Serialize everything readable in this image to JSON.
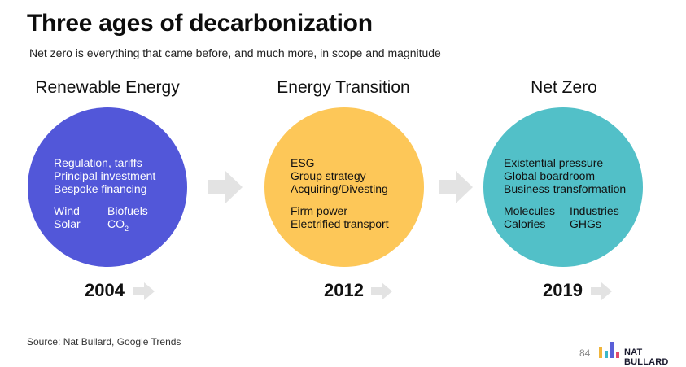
{
  "title": "Three ages of decarbonization",
  "subtitle": "Net zero is everything that came before, and much more, in scope and magnitude",
  "colors": {
    "renewable": "#5257d9",
    "transition": "#fdc758",
    "netzero": "#52c0c8",
    "arrow": "#e3e3e3",
    "logo_bars": [
      "#f0b53b",
      "#3bb7c9",
      "#5a5fd8",
      "#e24b6b"
    ]
  },
  "stages": [
    {
      "heading": "Renewable Energy",
      "lines": [
        "Regulation, tariffs",
        "Principal investment",
        "Bespoke financing"
      ],
      "grid": [
        [
          "Wind",
          "Biofuels"
        ],
        [
          "Solar",
          "CO",
          "2"
        ]
      ],
      "year": "2004"
    },
    {
      "heading": "Energy Transition",
      "lines": [
        "ESG",
        "Group strategy",
        "Acquiring/Divesting"
      ],
      "lines2": [
        "Firm power",
        "Electrified transport"
      ],
      "year": "2012"
    },
    {
      "heading": "Net Zero",
      "lines": [
        "Existential pressure",
        "Global boardroom",
        "Business transformation"
      ],
      "grid": [
        [
          "Molecules",
          "Industries"
        ],
        [
          "Calories",
          "GHGs"
        ]
      ],
      "year": "2019"
    }
  ],
  "footer": {
    "source": "Source: Nat Bullard, Google Trends",
    "page": "84",
    "brand": "NAT BULLARD"
  }
}
